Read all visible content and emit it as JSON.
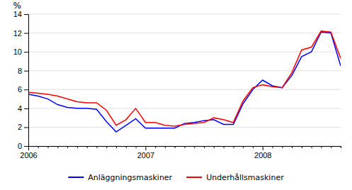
{
  "chart_data": {
    "type": "line",
    "ylabel": "%",
    "categories": [
      "2006",
      null,
      null,
      null,
      null,
      null,
      null,
      null,
      null,
      null,
      null,
      null,
      "2007",
      null,
      null,
      null,
      null,
      null,
      null,
      null,
      null,
      null,
      null,
      null,
      "2008",
      null,
      null,
      null,
      null,
      null,
      null,
      null,
      null
    ],
    "series": [
      {
        "name": "Anläggningsmaskiner",
        "color": "#0000ff",
        "values": [
          5.5,
          5.3,
          5.0,
          4.4,
          4.1,
          4.0,
          4.0,
          3.9,
          2.6,
          1.5,
          2.2,
          2.9,
          1.9,
          1.9,
          1.9,
          1.9,
          2.4,
          2.5,
          2.7,
          2.8,
          2.3,
          2.3,
          4.5,
          6.0,
          7.0,
          6.4,
          6.2,
          7.5,
          9.5,
          10.0,
          12.1,
          12.0,
          8.5
        ]
      },
      {
        "name": "Underhållsmaskiner",
        "color": "#ff0000",
        "values": [
          5.7,
          5.6,
          5.5,
          5.3,
          5.0,
          4.7,
          4.6,
          4.6,
          3.8,
          2.2,
          2.8,
          4.0,
          2.5,
          2.5,
          2.2,
          2.1,
          2.3,
          2.4,
          2.5,
          3.0,
          2.8,
          2.5,
          4.8,
          6.2,
          6.5,
          6.3,
          6.2,
          7.8,
          10.2,
          10.5,
          12.2,
          12.1,
          9.3
        ]
      }
    ],
    "ylim": [
      0,
      14
    ],
    "yticks": [
      0,
      2,
      4,
      6,
      8,
      10,
      12,
      14
    ],
    "grid": true,
    "legend": "bottom"
  }
}
